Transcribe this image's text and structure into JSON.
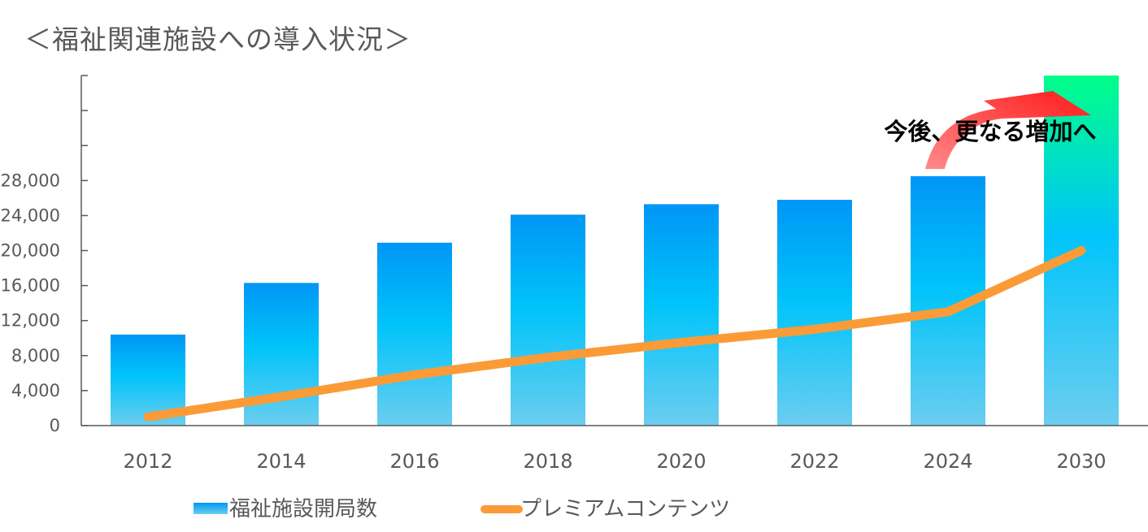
{
  "title": "＜福祉関連施設への導入状況＞",
  "chart_data": {
    "type": "bar",
    "categories": [
      "2012",
      "2014",
      "2016",
      "2018",
      "2020",
      "2022",
      "2024",
      "2030"
    ],
    "series": [
      {
        "name": "福祉施設開局数",
        "type": "bar",
        "values": [
          10400,
          16300,
          20900,
          24100,
          25300,
          25800,
          28500,
          40000
        ]
      },
      {
        "name": "プレミアムコンテンツ",
        "type": "line",
        "values": [
          1000,
          3300,
          5800,
          7800,
          9500,
          11000,
          13000,
          20000
        ]
      }
    ],
    "y_ticks": [
      "0",
      "4,000",
      "8,000",
      "12,000",
      "16,000",
      "20,000",
      "24,000",
      "28,000"
    ],
    "ylim": [
      0,
      40000
    ],
    "y_tick_step": 4000,
    "annotation": "今後、更なる増加へ",
    "legend_position": "bottom",
    "grid": false,
    "colors": {
      "bar_top": "#0096f5",
      "bar_mid": "#00c4fa",
      "bar_bottom": "#6ccdef",
      "bar_highlight_top": "#00ff88",
      "line": "#fb9b37",
      "arrow": "#ff2a2a",
      "axis": "#595959"
    }
  }
}
